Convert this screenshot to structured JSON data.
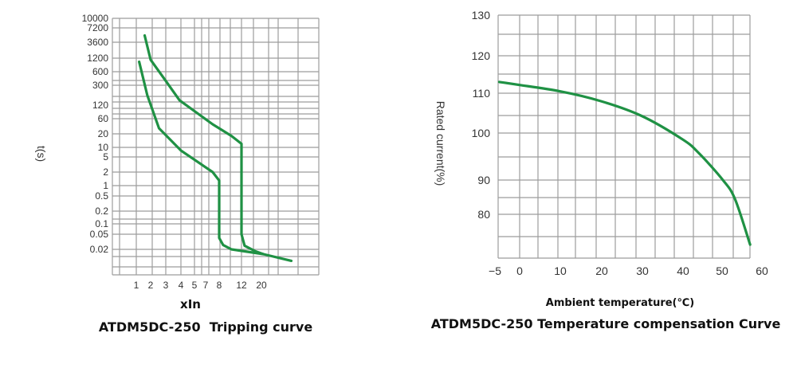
{
  "chart_data": [
    {
      "type": "line",
      "title": "ATDM5DC-250  Tripping curve",
      "xlabel": "xIn",
      "ylabel": "t(s)",
      "x_ticks": [
        "1",
        "2",
        "3",
        "4",
        "5",
        "7",
        "8",
        "12",
        "20"
      ],
      "y_ticks": [
        "10000",
        "7200",
        "3600",
        "1200",
        "600",
        "300",
        "120",
        "60",
        "20",
        "10",
        "5",
        "2",
        "1",
        "0.5",
        "0.2",
        "0.1",
        "0.05",
        "0.02"
      ],
      "grid": true,
      "line_color": "#1f9144",
      "series": [
        {
          "points": [
            [
              1.15,
              1000
            ],
            [
              1.7,
              190
            ],
            [
              2.5,
              30
            ],
            [
              4,
              8
            ],
            [
              7.5,
              2
            ],
            [
              8,
              1.3
            ],
            [
              8,
              0.04
            ],
            [
              8.6,
              0.026
            ],
            [
              10,
              0.02
            ],
            [
              21,
              0.015
            ],
            [
              43,
              0.01
            ]
          ]
        },
        {
          "points": [
            [
              1.5,
              5000
            ],
            [
              2,
              1100
            ],
            [
              2.8,
              450
            ],
            [
              3.9,
              150
            ],
            [
              7.5,
              40
            ],
            [
              10,
              18
            ],
            [
              12,
              12
            ],
            [
              12,
              0.05
            ],
            [
              13,
              0.025
            ],
            [
              17,
              0.018
            ],
            [
              21,
              0.015
            ]
          ]
        }
      ]
    },
    {
      "type": "line",
      "title": "ATDM5DC-250 Temperature compensation Curve",
      "xlabel": "Ambient temperature(℃)",
      "ylabel": "Rated current(%)",
      "x_ticks": [
        "−5",
        "0",
        "10",
        "20",
        "30",
        "40",
        "50",
        "60"
      ],
      "y_ticks": [
        "130",
        "120",
        "110",
        "100",
        "90",
        "80"
      ],
      "grid": true,
      "line_color": "#1f9144",
      "series": [
        {
          "points": [
            [
              -5,
              113
            ],
            [
              0,
              112.2
            ],
            [
              10,
              110.5
            ],
            [
              20,
              108
            ],
            [
              30,
              104.3
            ],
            [
              40,
              98.7
            ],
            [
              44,
              95.8
            ],
            [
              50,
              90
            ],
            [
              53,
              84.4
            ],
            [
              56.7,
              71
            ]
          ]
        }
      ]
    }
  ]
}
